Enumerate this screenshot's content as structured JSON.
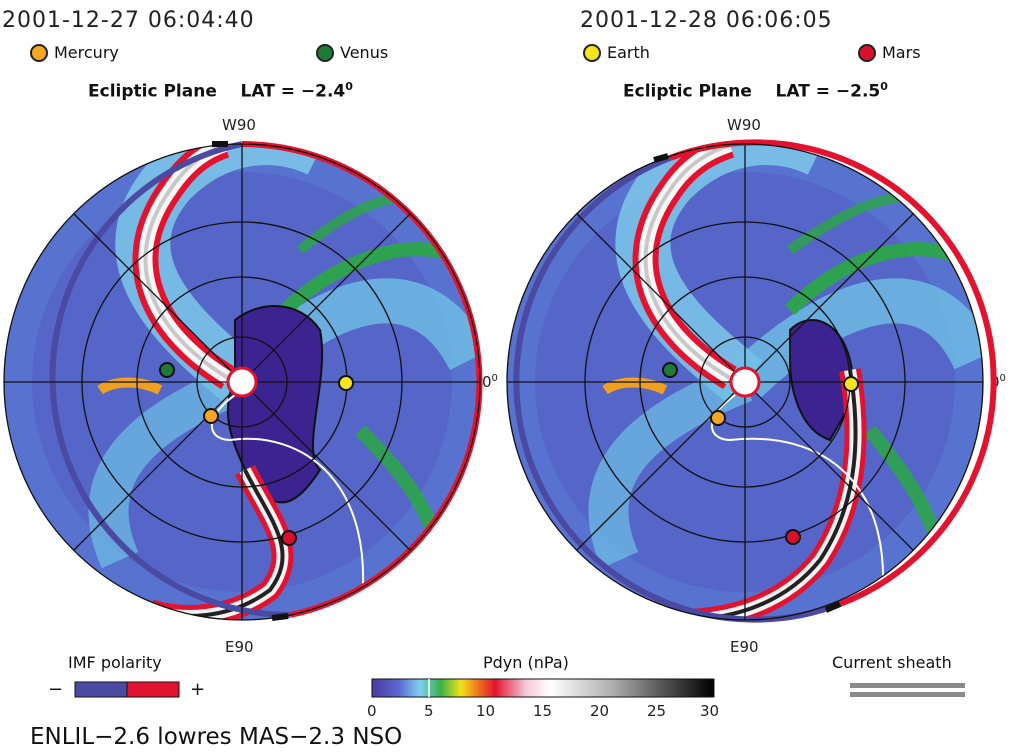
{
  "panels": [
    {
      "timestamp": "2001-12-27 06:04:40",
      "title": "Ecliptic Plane",
      "lat_label": "LAT =",
      "lat_value": "−2.4",
      "lat_unit": "0",
      "top_dir": "W90",
      "bottom_dir": "E90",
      "right_dir": "0",
      "right_unit": "0"
    },
    {
      "timestamp": "2001-12-28 06:06:05",
      "title": "Ecliptic Plane",
      "lat_label": "LAT =",
      "lat_value": "−2.5",
      "lat_unit": "0",
      "top_dir": "W90",
      "bottom_dir": "E90",
      "right_dir": "0",
      "right_unit": "0"
    }
  ],
  "planets": {
    "mercury": {
      "label": "Mercury",
      "color": "#f5a623"
    },
    "venus": {
      "label": "Venus",
      "color": "#1f7a3a"
    },
    "earth": {
      "label": "Earth",
      "color": "#f5e61c"
    },
    "mars": {
      "label": "Mars",
      "color": "#d9112b"
    }
  },
  "imf": {
    "title": "IMF polarity",
    "minus": "−",
    "plus": "+",
    "neg_color": "#4b4aa3",
    "pos_color": "#e3122f"
  },
  "pdyn": {
    "title": "Pdyn (nPa)",
    "ticks": [
      "0",
      "5",
      "10",
      "15",
      "20",
      "25",
      "30"
    ]
  },
  "sheath": {
    "title": "Current sheath"
  },
  "footer": "ENLIL−2.6 lowres MAS−2.3 NSO"
}
